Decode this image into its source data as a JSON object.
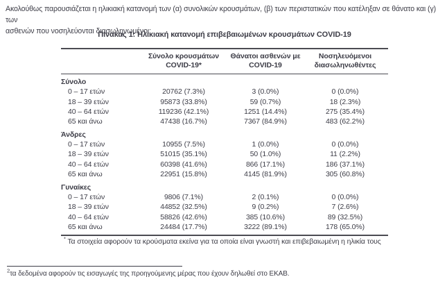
{
  "colors": {
    "text": "#3c3c46",
    "rule": "#4b4b52"
  },
  "intro": {
    "line1": "Ακολούθως παρουσιάζεται η ηλικιακή κατανομή των (α) συνολικών κρουσμάτων, (β) των περιστατικών που κατέληξαν σε θάνατο και (γ) των",
    "line2": "ασθενών που νοσηλεύονται διασωληνωμένοι:"
  },
  "table": {
    "title": "Πίνακας 1: Ηλικιακή κατανομή επιβεβαιωμένων κρουσμάτων COVID-19",
    "columns": [
      "Σύνολο κρουσμάτων COVID-19*",
      "Θάνατοι ασθενών με COVID-19",
      "Νοσηλευόμενοι διασωληνωθέντες"
    ],
    "sections": [
      {
        "name": "Σύνολο",
        "rows": [
          {
            "label": "0 – 17 ετών",
            "cells": [
              "20762 (7.3%)",
              "3 (0.0%)",
              "0 (0.0%)"
            ]
          },
          {
            "label": "18 – 39 ετών",
            "cells": [
              "95873 (33.8%)",
              "59 (0.7%)",
              "18 (2.3%)"
            ]
          },
          {
            "label": "40 – 64 ετών",
            "cells": [
              "119236 (42.1%)",
              "1251 (14.4%)",
              "275 (35.4%)"
            ]
          },
          {
            "label": "65 και άνω",
            "cells": [
              "47438 (16.7%)",
              "7367 (84.9%)",
              "483 (62.2%)"
            ]
          }
        ]
      },
      {
        "name": "Άνδρες",
        "rows": [
          {
            "label": "0 – 17 ετών",
            "cells": [
              "10955 (7.5%)",
              "1 (0.0%)",
              "0 (0.0%)"
            ]
          },
          {
            "label": "18 – 39 ετών",
            "cells": [
              "51015 (35.1%)",
              "50 (1.0%)",
              "11 (2.2%)"
            ]
          },
          {
            "label": "40 – 64 ετών",
            "cells": [
              "60398 (41.6%)",
              "866 (17.1%)",
              "186 (37.1%)"
            ]
          },
          {
            "label": "65 και άνω",
            "cells": [
              "22951 (15.8%)",
              "4145 (81.9%)",
              "305 (60.8%)"
            ]
          }
        ]
      },
      {
        "name": "Γυναίκες",
        "rows": [
          {
            "label": "0 – 17 ετών",
            "cells": [
              "9806 (7.1%)",
              "2 (0.1%)",
              "0 (0.0%)"
            ]
          },
          {
            "label": "18 – 39 ετών",
            "cells": [
              "44852 (32.5%)",
              "9 (0.2%)",
              "7 (2.6%)"
            ]
          },
          {
            "label": "40 – 64 ετών",
            "cells": [
              "58826 (42.6%)",
              "385 (10.6%)",
              "89 (32.5%)"
            ]
          },
          {
            "label": "65 και άνω",
            "cells": [
              "24484 (17.7%)",
              "3222 (89.1%)",
              "178 (65.0%)"
            ]
          }
        ]
      }
    ],
    "footnote_marker": "*",
    "footnote": "Τα στοιχεία αφορούν τα κρούσματα εκείνα για τα οποία είναι γνωστή και επιβεβαιωμένη η ηλικία τους"
  },
  "page_footnote": {
    "marker": "2",
    "text": "τα δεδομένα αφορούν τις εισαγωγές της προηγούμενης μέρας που έχουν δηλωθεί στο ΕΚΑΒ."
  }
}
